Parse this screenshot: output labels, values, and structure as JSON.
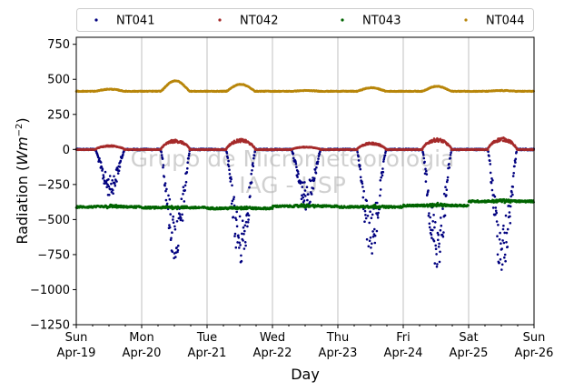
{
  "chart_data": {
    "type": "scatter",
    "xlabel": "Day",
    "ylabel": "Radiation (Wm⁻²)",
    "ylabel_base": "Radiation (",
    "ylabel_unit": "Wm",
    "ylabel_exp": "−2",
    "ylabel_close": ")",
    "ylim": [
      -1250,
      800
    ],
    "yticks": [
      -1250,
      -1000,
      -750,
      -500,
      -250,
      0,
      250,
      500,
      750
    ],
    "ytick_labels": [
      "−1250",
      "−1000",
      "−750",
      "−500",
      "−250",
      "0",
      "250",
      "500",
      "750"
    ],
    "xlim": [
      "2020-04-19",
      "2020-04-26"
    ],
    "xtick_labels": [
      {
        "day": "Sun",
        "date": "Apr-19"
      },
      {
        "day": "Mon",
        "date": "Apr-20"
      },
      {
        "day": "Tue",
        "date": "Apr-21"
      },
      {
        "day": "Wed",
        "date": "Apr-22"
      },
      {
        "day": "Thu",
        "date": "Apr-23"
      },
      {
        "day": "Fri",
        "date": "Apr-24"
      },
      {
        "day": "Sat",
        "date": "Apr-25"
      },
      {
        "day": "Sun",
        "date": "Apr-26"
      }
    ],
    "grid": "vertical lines at each day",
    "legend_placement": "top, above plot, 4 columns",
    "watermark": [
      "Grupo de Micrometeorologia",
      "IAG - USP"
    ],
    "series": [
      {
        "name": "NT041",
        "color": "#00007f",
        "baseline": 0,
        "daily_pattern": "large negative excursions during daytime",
        "daily_min_by_day": [
          -340,
          -820,
          -850,
          -430,
          -780,
          -860,
          -910
        ]
      },
      {
        "name": "NT042",
        "color": "#a52a2a",
        "baseline": 0,
        "daily_pattern": "small positive bump during daytime",
        "daily_max_by_day": [
          30,
          70,
          75,
          20,
          50,
          80,
          85
        ]
      },
      {
        "name": "NT043",
        "color": "#006400",
        "baseline": -410,
        "daily_pattern": "roughly flat around -400, rising to about -350 near the end",
        "daily_mean_by_day": [
          -410,
          -415,
          -420,
          -405,
          -410,
          -400,
          -370
        ]
      },
      {
        "name": "NT044",
        "color": "#b8860b",
        "baseline": 415,
        "daily_pattern": "roughly flat around 415 with small daytime bumps",
        "daily_max_by_day": [
          430,
          490,
          465,
          420,
          440,
          450,
          420
        ]
      }
    ]
  }
}
